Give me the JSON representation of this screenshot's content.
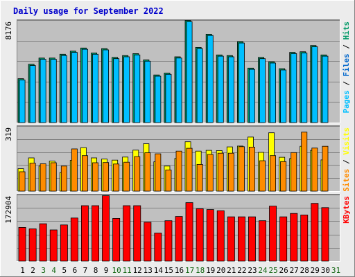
{
  "chart_data": {
    "type": "bar",
    "title": "Daily usage for September 2022",
    "categories": [
      "1",
      "2",
      "3",
      "4",
      "5",
      "6",
      "7",
      "8",
      "9",
      "10",
      "11",
      "12",
      "13",
      "14",
      "15",
      "16",
      "17",
      "18",
      "19",
      "20",
      "21",
      "22",
      "23",
      "24",
      "25",
      "26",
      "27",
      "28",
      "29",
      "30",
      "31"
    ],
    "weekend_days": [
      "3",
      "4",
      "10",
      "11",
      "17",
      "18",
      "24",
      "25",
      "31"
    ],
    "grid": true,
    "colors": {
      "background": "#ececec",
      "panel": "#c0c0c0",
      "title": "#0000cc",
      "weekday_label": "#000000",
      "weekend_label": "#116611",
      "hits": "#009966",
      "files": "#0066cc",
      "pages": "#00bfff",
      "visits": "#ffff00",
      "sites": "#ff8c00",
      "kbytes": "#ff0000"
    },
    "panels": [
      {
        "id": "hits-files-pages",
        "max_label": "8176",
        "ylim": [
          0,
          8176
        ],
        "right_label": [
          {
            "text": "Pages",
            "color": "#00bfff"
          },
          {
            "text": " / ",
            "color": "#000000"
          },
          {
            "text": "Files",
            "color": "#0066cc"
          },
          {
            "text": " / ",
            "color": "#000000"
          },
          {
            "text": "Hits",
            "color": "#009966"
          }
        ],
        "series": [
          {
            "name": "Hits",
            "color": "#009966",
            "values": [
              3500,
              4650,
              5150,
              5150,
              5450,
              5700,
              5950,
              5550,
              5900,
              5200,
              5350,
              5500,
              5000,
              3800,
              3950,
              5250,
              8150,
              6000,
              7050,
              5400,
              5350,
              6450,
              4350,
              5200,
              4850,
              4300,
              5600,
              5650,
              6150,
              5400
            ]
          },
          {
            "name": "Pages",
            "color": "#00bfff",
            "values": [
              3400,
              4550,
              5050,
              5050,
              5350,
              5600,
              5850,
              5450,
              5800,
              5100,
              5250,
              5400,
              4900,
              3700,
              3850,
              5150,
              8050,
              5900,
              6950,
              5300,
              5250,
              6350,
              4250,
              5100,
              4750,
              4200,
              5500,
              5550,
              6050,
              5300
            ]
          }
        ]
      },
      {
        "id": "visits-sites",
        "max_label": "319",
        "ylim": [
          0,
          319
        ],
        "right_label": [
          {
            "text": "Sites",
            "color": "#ff8c00"
          },
          {
            "text": " / ",
            "color": "#000000"
          },
          {
            "text": "Visits",
            "color": "#ffff00"
          }
        ],
        "series": [
          {
            "name": "Visits",
            "color": "#ffff00",
            "values": [
              110,
              163,
              123,
              147,
              91,
              151,
              213,
              163,
              157,
              152,
              167,
              201,
              232,
              144,
              123,
              160,
              242,
              196,
              200,
              199,
              217,
              221,
              265,
              190,
              286,
              166,
              160,
              220,
              200,
              153
            ]
          },
          {
            "name": "Sites",
            "color": "#ff8c00",
            "values": [
              95,
              137,
              134,
              139,
              123,
              207,
              174,
              139,
              140,
              133,
              142,
              169,
              188,
              183,
              104,
              196,
              210,
              131,
              180,
              186,
              186,
              218,
              216,
              149,
              174,
              145,
              189,
              289,
              211,
              220
            ]
          }
        ]
      },
      {
        "id": "kbytes",
        "max_label": "172904",
        "ylim": [
          0,
          172904
        ],
        "right_label": [
          {
            "text": "KBytes",
            "color": "#ff0000"
          }
        ],
        "series": [
          {
            "name": "KBytes",
            "color": "#ff0000",
            "values": [
              87500,
              84000,
              97000,
              81000,
              94000,
              112000,
              144000,
              144000,
              170000,
              111000,
              144000,
              144000,
              101000,
              73000,
              105000,
              116000,
              152000,
              136000,
              134000,
              131000,
              115000,
              115000,
              115000,
              105000,
              143000,
              115000,
              124000,
              120000,
              150000,
              139000
            ]
          }
        ]
      }
    ]
  }
}
